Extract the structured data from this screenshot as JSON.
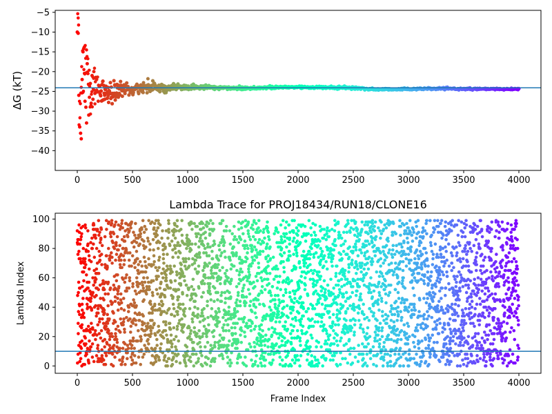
{
  "chart_data": [
    {
      "type": "scatter",
      "title": "",
      "xlabel": "",
      "ylabel": "ΔG (kT)",
      "xlim": [
        -200,
        4200
      ],
      "ylim": [
        -45,
        -4.5
      ],
      "xticks": [
        0,
        500,
        1000,
        1500,
        2000,
        2500,
        3000,
        3500,
        4000
      ],
      "yticks": [
        -40,
        -35,
        -30,
        -25,
        -20,
        -15,
        -10,
        -5
      ],
      "grid": false,
      "colormap": "rainbow (red at frame 0 → purple at frame 4000)",
      "reference_line": {
        "y": -24.1,
        "color": "#1f77b4"
      },
      "trace": [
        [
          0,
          -10.0
        ],
        [
          20,
          -26.0
        ],
        [
          40,
          -22.5
        ],
        [
          60,
          -14.0
        ],
        [
          80,
          -21.5
        ],
        [
          100,
          -24.0
        ],
        [
          120,
          -27.0
        ],
        [
          150,
          -23.0
        ],
        [
          200,
          -25.5
        ],
        [
          300,
          -25.0
        ],
        [
          400,
          -24.5
        ],
        [
          500,
          -24.6
        ],
        [
          600,
          -24.0
        ],
        [
          700,
          -23.7
        ],
        [
          800,
          -24.2
        ],
        [
          1000,
          -23.9
        ],
        [
          1200,
          -24.0
        ],
        [
          1500,
          -24.2
        ],
        [
          1800,
          -24.0
        ],
        [
          2000,
          -23.9
        ],
        [
          2200,
          -24.0
        ],
        [
          2500,
          -24.1
        ],
        [
          2700,
          -24.5
        ],
        [
          3000,
          -24.4
        ],
        [
          3300,
          -24.3
        ],
        [
          3600,
          -24.4
        ],
        [
          4000,
          -24.4
        ]
      ],
      "envelope": [
        [
          0,
          16
        ],
        [
          40,
          13
        ],
        [
          80,
          9
        ],
        [
          120,
          5
        ],
        [
          200,
          3.2
        ],
        [
          300,
          2.4
        ],
        [
          400,
          1.8
        ],
        [
          500,
          1.3
        ],
        [
          650,
          1.1
        ],
        [
          800,
          0.8
        ],
        [
          1000,
          0.6
        ],
        [
          1300,
          0.45
        ],
        [
          1600,
          0.35
        ],
        [
          2000,
          0.3
        ],
        [
          2500,
          0.25
        ],
        [
          3000,
          0.2
        ],
        [
          4000,
          0.15
        ]
      ],
      "points": [
        [
          0,
          -10.0
        ],
        [
          8,
          -10.3
        ],
        [
          14,
          -26.0
        ],
        [
          22,
          -34.0
        ],
        [
          30,
          -35.6
        ],
        [
          36,
          -37.0
        ],
        [
          44,
          -22.0
        ],
        [
          52,
          -15.0
        ],
        [
          58,
          -14.2
        ],
        [
          64,
          -13.8
        ],
        [
          70,
          -27.5
        ],
        [
          78,
          -29.0
        ],
        [
          84,
          -33.0
        ],
        [
          90,
          -18.0
        ],
        [
          96,
          -20.5
        ],
        [
          104,
          -31.0
        ],
        [
          110,
          -26.5
        ],
        [
          118,
          -23.0
        ],
        [
          126,
          -28.0
        ],
        [
          134,
          -21.0
        ],
        [
          142,
          -27.0
        ],
        [
          150,
          -20.0
        ],
        [
          160,
          -25.5
        ],
        [
          175,
          -22.0
        ],
        [
          190,
          -27.5
        ],
        [
          210,
          -25.0
        ],
        [
          230,
          -22.5
        ],
        [
          250,
          -27.0
        ],
        [
          280,
          -24.0
        ],
        [
          310,
          -26.5
        ],
        [
          340,
          -23.5
        ],
        [
          380,
          -25.5
        ],
        [
          420,
          -24.0
        ],
        [
          460,
          -23.8
        ],
        [
          520,
          -24.5
        ],
        [
          600,
          -22.8
        ],
        [
          640,
          -21.8
        ],
        [
          700,
          -23.0
        ],
        [
          760,
          -24.3
        ],
        [
          830,
          -24.0
        ]
      ]
    },
    {
      "type": "scatter",
      "title": "Lambda Trace for PROJ18434/RUN18/CLONE16",
      "xlabel": "Frame Index",
      "ylabel": "Lambda Index",
      "xlim": [
        -200,
        4200
      ],
      "ylim": [
        -5,
        104
      ],
      "xticks": [
        0,
        500,
        1000,
        1500,
        2000,
        2500,
        3000,
        3500,
        4000
      ],
      "yticks": [
        0,
        20,
        40,
        60,
        80,
        100
      ],
      "grid": false,
      "colormap": "rainbow (red at frame 0 → purple at frame 4000)",
      "reference_line": {
        "y": 10,
        "color": "#1f77b4"
      },
      "points_description_count": 4000,
      "lambda_range": [
        0,
        99
      ]
    }
  ]
}
